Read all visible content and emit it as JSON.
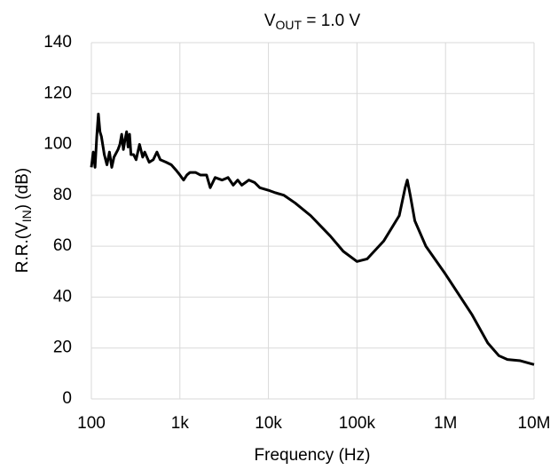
{
  "chart_data": {
    "type": "line",
    "title": [
      "V",
      "OUT",
      " = 1.0 V"
    ],
    "x_label": "Frequency (Hz)",
    "y_label": [
      "R.R.(V",
      "IN",
      ") (dB)"
    ],
    "x_log": true,
    "grid": true,
    "xlim": [
      100,
      10000000
    ],
    "xticks": [
      100,
      {
        "value": 1000,
        "label": "1k"
      },
      {
        "value": 10000,
        "label": "10k"
      },
      {
        "value": 100000,
        "label": "100k"
      },
      {
        "value": 1000000,
        "label": "1M"
      },
      {
        "value": 10000000,
        "label": "10M"
      }
    ],
    "ylim": [
      0,
      140
    ],
    "yticks": [
      0,
      20,
      40,
      60,
      80,
      100,
      120,
      140
    ],
    "series": [
      {
        "color": "#000000",
        "x": [
          100,
          105,
          110,
          115,
          120,
          125,
          130,
          140,
          150,
          160,
          170,
          180,
          200,
          210,
          220,
          230,
          240,
          250,
          260,
          270,
          280,
          300,
          320,
          350,
          380,
          400,
          450,
          500,
          550,
          600,
          700,
          800,
          900,
          1000,
          1100,
          1200,
          1300,
          1500,
          1700,
          2000,
          2200,
          2500,
          3000,
          3500,
          4000,
          4500,
          5000,
          6000,
          7000,
          8000,
          10000,
          12000,
          15000,
          20000,
          30000,
          50000,
          70000,
          100000,
          130000,
          200000,
          300000,
          350000,
          370000,
          400000,
          450000,
          600000,
          1000000,
          2000000,
          3000000,
          4000000,
          5000000,
          7000000,
          10000000
        ],
        "values": [
          91,
          97,
          91,
          103,
          112,
          105,
          103,
          96,
          92,
          97,
          91,
          95,
          98,
          100,
          104,
          98,
          102,
          105,
          99,
          104,
          96,
          96,
          94,
          100,
          95,
          97,
          93,
          94,
          97,
          94,
          93,
          92,
          90,
          88,
          86,
          88,
          89,
          89,
          88,
          88,
          83,
          87,
          86,
          87,
          84,
          86,
          84,
          86,
          85,
          83,
          82,
          81,
          80,
          77,
          72,
          64,
          58,
          54,
          55,
          62,
          72,
          83,
          86,
          80,
          70,
          60,
          49,
          33,
          22,
          17,
          15.5,
          15,
          13.5
        ]
      }
    ]
  }
}
